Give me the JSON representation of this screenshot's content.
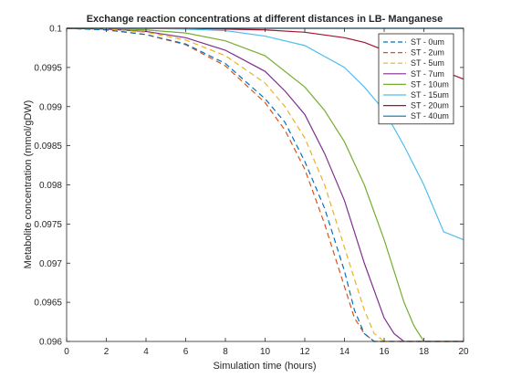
{
  "chart_data": {
    "type": "line",
    "title": "Exchange reaction concentrations at different distances in LB- Manganese",
    "xlabel": "Simulation time (hours)",
    "ylabel": "Metabolite concentration (mmol/gDW)",
    "xlim": [
      0,
      20
    ],
    "ylim": [
      0.096,
      0.1
    ],
    "xticks": [
      0,
      2,
      4,
      6,
      8,
      10,
      12,
      14,
      16,
      18,
      20
    ],
    "xtick_labels": [
      "0",
      "2",
      "4",
      "6",
      "8",
      "10",
      "12",
      "14",
      "16",
      "18",
      "20"
    ],
    "yticks": [
      0.096,
      0.0965,
      0.097,
      0.0975,
      0.098,
      0.0985,
      0.099,
      0.0995,
      0.1
    ],
    "ytick_labels": [
      "0.096",
      "0.0965",
      "0.097",
      "0.0975",
      "0.098",
      "0.0985",
      "0.099",
      "0.0995",
      "0.1"
    ],
    "grid": false,
    "legend_position": "top-right",
    "series": [
      {
        "name": "ST - 0um",
        "color": "#0072BD",
        "dash": "dashed",
        "x": [
          0,
          2,
          4,
          6,
          8,
          10,
          11,
          12,
          13,
          14,
          14.5,
          15,
          15.5,
          15.8,
          16,
          20
        ],
        "y": [
          0.1,
          0.09998,
          0.09992,
          0.0998,
          0.09955,
          0.0991,
          0.0988,
          0.0983,
          0.0977,
          0.0969,
          0.0964,
          0.0961,
          0.096,
          0.096,
          0.096,
          0.096
        ]
      },
      {
        "name": "ST - 2um",
        "color": "#D95319",
        "dash": "dashed",
        "x": [
          0,
          2,
          4,
          6,
          8,
          10,
          11,
          12,
          13,
          14,
          14.5,
          15,
          15.5,
          15.9,
          16.2,
          20
        ],
        "y": [
          0.1,
          0.09998,
          0.09992,
          0.09979,
          0.09952,
          0.09905,
          0.0987,
          0.0982,
          0.0975,
          0.0967,
          0.0963,
          0.0961,
          0.096,
          0.096,
          0.096,
          0.096
        ]
      },
      {
        "name": "ST - 5um",
        "color": "#EDB120",
        "dash": "dashed",
        "x": [
          0,
          2,
          4,
          6,
          8,
          10,
          11,
          12,
          13,
          14,
          15,
          15.5,
          16,
          16.5,
          16.8,
          20
        ],
        "y": [
          0.1,
          0.09999,
          0.09995,
          0.09985,
          0.09965,
          0.0993,
          0.099,
          0.0986,
          0.098,
          0.0972,
          0.0964,
          0.0961,
          0.096,
          0.096,
          0.096,
          0.096
        ]
      },
      {
        "name": "ST - 7um",
        "color": "#7E2F8E",
        "dash": "solid",
        "x": [
          0,
          2,
          4,
          6,
          8,
          10,
          11,
          12,
          13,
          14,
          15,
          16,
          16.5,
          17,
          17.5,
          20
        ],
        "y": [
          0.1,
          0.09999,
          0.09996,
          0.09988,
          0.09972,
          0.09945,
          0.0992,
          0.0989,
          0.0984,
          0.0978,
          0.097,
          0.0963,
          0.0961,
          0.096,
          0.096,
          0.096
        ]
      },
      {
        "name": "ST - 10um",
        "color": "#77AC30",
        "dash": "solid",
        "x": [
          0,
          2,
          4,
          6,
          8,
          10,
          12,
          13,
          14,
          15,
          16,
          17,
          17.5,
          18,
          18.5,
          20
        ],
        "y": [
          0.1,
          0.1,
          0.09998,
          0.09994,
          0.09984,
          0.09965,
          0.09925,
          0.09895,
          0.09855,
          0.098,
          0.0973,
          0.0965,
          0.0962,
          0.096,
          0.096,
          0.096
        ]
      },
      {
        "name": "ST - 15um",
        "color": "#4DBEEE",
        "dash": "solid",
        "x": [
          0,
          4,
          6,
          8,
          10,
          12,
          14,
          15,
          16,
          17,
          18,
          19,
          20
        ],
        "y": [
          0.1,
          0.1,
          0.09999,
          0.09997,
          0.0999,
          0.09978,
          0.0995,
          0.09925,
          0.09895,
          0.0985,
          0.098,
          0.0974,
          0.0973
        ]
      },
      {
        "name": "ST - 20um",
        "color": "#A2142F",
        "dash": "solid",
        "x": [
          0,
          6,
          8,
          10,
          12,
          14,
          15,
          16,
          17,
          18,
          19,
          20
        ],
        "y": [
          0.1,
          0.1,
          0.09999,
          0.09998,
          0.09995,
          0.09988,
          0.09982,
          0.09972,
          0.09962,
          0.09953,
          0.09945,
          0.09935
        ]
      },
      {
        "name": "ST - 40um",
        "color": "#0072BD",
        "dash": "solid",
        "x": [
          0,
          20
        ],
        "y": [
          0.1,
          0.1
        ]
      }
    ]
  }
}
